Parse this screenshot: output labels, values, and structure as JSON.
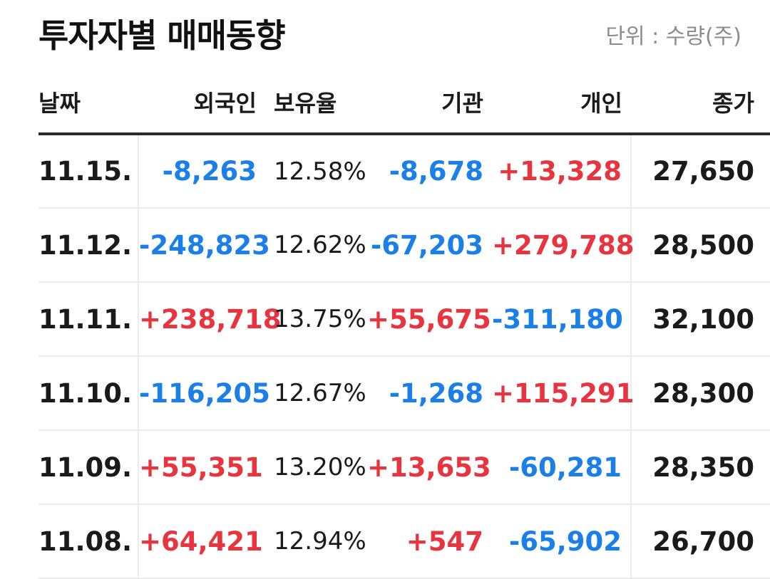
{
  "header": {
    "title": "투자자별 매매동향",
    "unit": "단위 : 수량(주)"
  },
  "columns": {
    "date": "날짜",
    "foreign": "외국인",
    "holding": "보유율",
    "institution": "기관",
    "individual": "개인",
    "close": "종가"
  },
  "colors": {
    "up": "#e8343f",
    "down": "#1a7fe8"
  },
  "rows": [
    {
      "date": "11.15.",
      "foreign": "-8,263",
      "holding": "12.58%",
      "institution": "-8,678",
      "individual": "+13,328",
      "close": "27,650"
    },
    {
      "date": "11.12.",
      "foreign": "-248,823",
      "holding": "12.62%",
      "institution": "-67,203",
      "individual": "+279,788",
      "close": "28,500"
    },
    {
      "date": "11.11.",
      "foreign": "+238,718",
      "holding": "13.75%",
      "institution": "+55,675",
      "individual": "-311,180",
      "close": "32,100"
    },
    {
      "date": "11.10.",
      "foreign": "-116,205",
      "holding": "12.67%",
      "institution": "-1,268",
      "individual": "+115,291",
      "close": "28,300"
    },
    {
      "date": "11.09.",
      "foreign": "+55,351",
      "holding": "13.20%",
      "institution": "+13,653",
      "individual": "-60,281",
      "close": "28,350"
    },
    {
      "date": "11.08.",
      "foreign": "+64,421",
      "holding": "12.94%",
      "institution": "+547",
      "individual": "-65,902",
      "close": "26,700"
    }
  ]
}
